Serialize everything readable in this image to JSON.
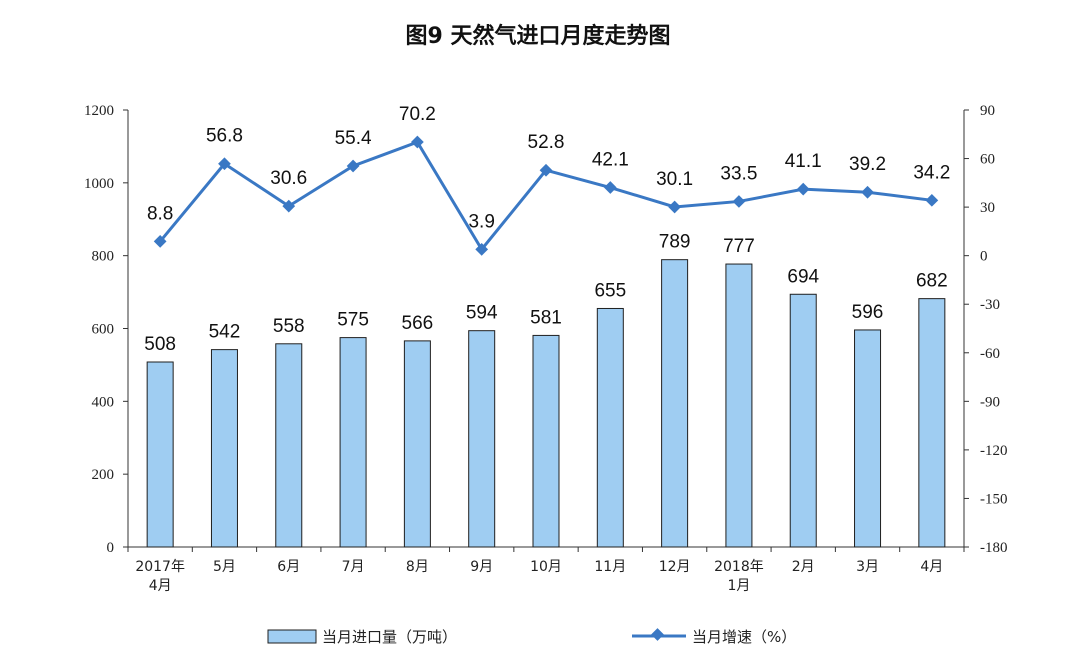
{
  "title": "图9  天然气进口月度走势图",
  "legend": {
    "bar_label": "当月进口量（万吨）",
    "line_label": "当月增速（%）"
  },
  "colors": {
    "bar_fill": "#9fcdf2",
    "bar_stroke": "#1f1f1f",
    "line": "#3a78c4",
    "axis": "#333333"
  },
  "chart_data": {
    "type": "bar",
    "title": "图9  天然气进口月度走势图",
    "categories": [
      "2017年\n4月",
      "5月",
      "6月",
      "7月",
      "8月",
      "9月",
      "10月",
      "11月",
      "12月",
      "2018年\n1月",
      "2月",
      "3月",
      "4月"
    ],
    "series": [
      {
        "name": "当月进口量（万吨）",
        "type": "bar",
        "axis": "left",
        "values": [
          508,
          542,
          558,
          575,
          566,
          594,
          581,
          655,
          789,
          777,
          694,
          596,
          682
        ]
      },
      {
        "name": "当月增速（%）",
        "type": "line",
        "axis": "right",
        "values": [
          8.8,
          56.8,
          30.6,
          55.4,
          70.2,
          3.9,
          52.8,
          42.1,
          30.1,
          33.5,
          41.1,
          39.2,
          34.2
        ]
      }
    ],
    "ylim_left": [
      0,
      1200
    ],
    "yticks_left": [
      0,
      200,
      400,
      600,
      800,
      1000,
      1200
    ],
    "ylim_right": [
      -180,
      90
    ],
    "yticks_right": [
      90,
      60,
      30,
      0,
      -30,
      -60,
      -90,
      -120,
      -150,
      -180
    ],
    "grid": false,
    "legend_position": "bottom"
  }
}
